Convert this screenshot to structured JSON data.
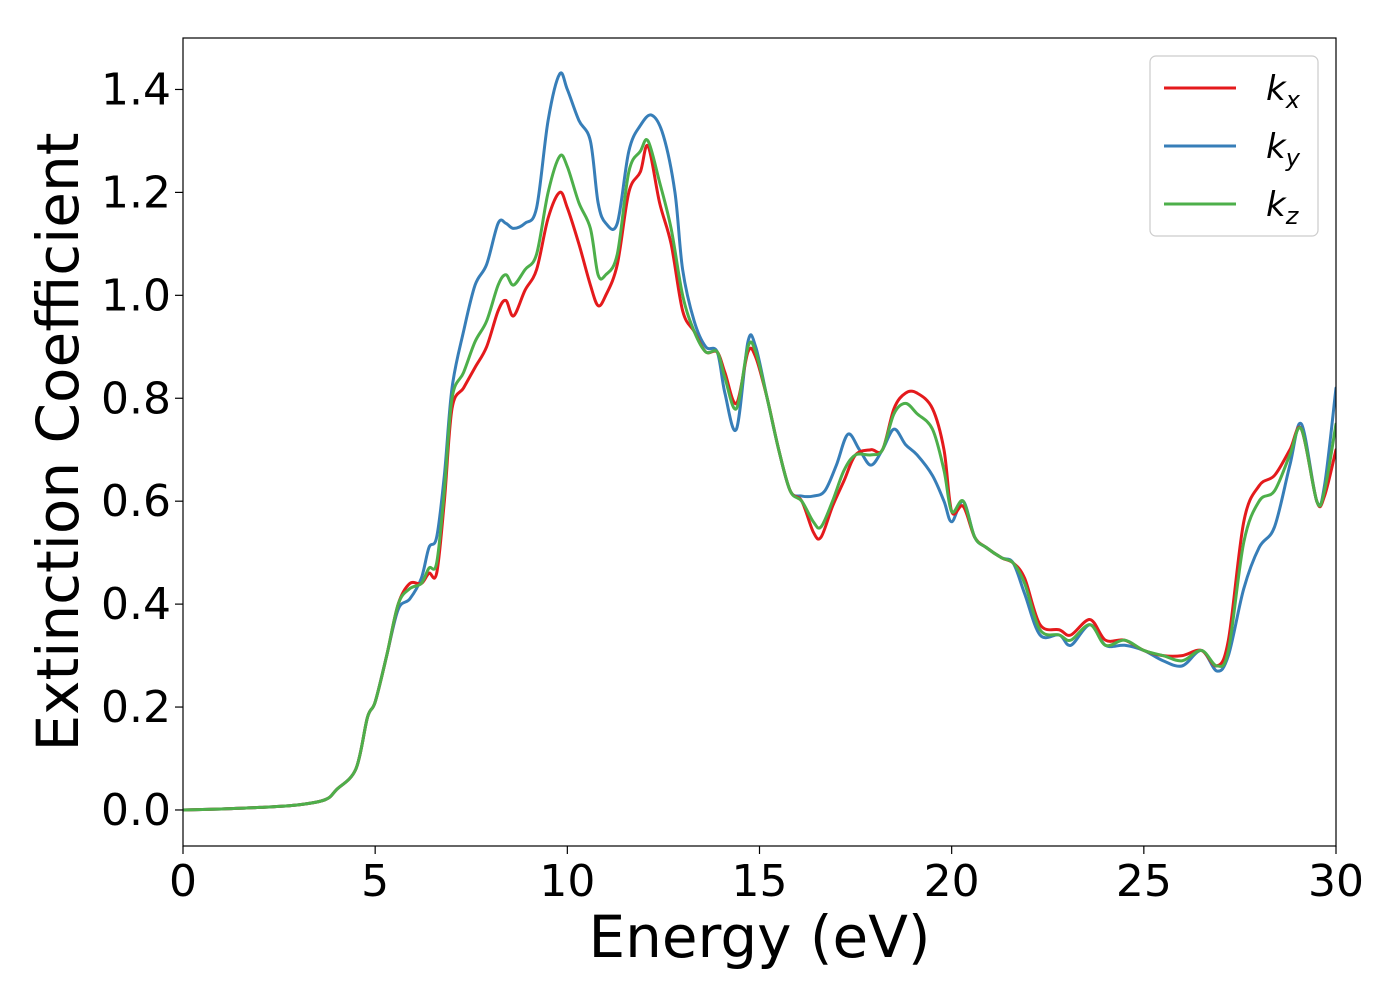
{
  "chart_data": {
    "type": "line",
    "title": "",
    "xlabel": "Energy (eV)",
    "ylabel": "Extinction Coefficient",
    "xlim": [
      0,
      30
    ],
    "ylim": [
      -0.07,
      1.5
    ],
    "xticks": [
      0,
      5,
      10,
      15,
      20,
      25,
      30
    ],
    "xtick_labels": [
      "0",
      "5",
      "10",
      "15",
      "20",
      "25",
      "30"
    ],
    "yticks": [
      0.0,
      0.2,
      0.4,
      0.6,
      0.8,
      1.0,
      1.2,
      1.4
    ],
    "ytick_labels": [
      "0.0",
      "0.2",
      "0.4",
      "0.6",
      "0.8",
      "1.0",
      "1.2",
      "1.4"
    ],
    "grid": false,
    "legend_position": "top-right",
    "series": [
      {
        "name": "k_x",
        "label_base": "k",
        "label_sub": "x",
        "color": "#e41a1c",
        "points": [
          [
            0,
            0.0
          ],
          [
            1,
            0.002
          ],
          [
            2,
            0.005
          ],
          [
            3,
            0.01
          ],
          [
            3.7,
            0.02
          ],
          [
            4.0,
            0.04
          ],
          [
            4.5,
            0.08
          ],
          [
            4.8,
            0.18
          ],
          [
            5.0,
            0.21
          ],
          [
            5.3,
            0.3
          ],
          [
            5.6,
            0.4
          ],
          [
            5.9,
            0.44
          ],
          [
            6.2,
            0.44
          ],
          [
            6.4,
            0.46
          ],
          [
            6.6,
            0.46
          ],
          [
            6.8,
            0.6
          ],
          [
            7.0,
            0.78
          ],
          [
            7.3,
            0.82
          ],
          [
            7.6,
            0.86
          ],
          [
            7.9,
            0.9
          ],
          [
            8.2,
            0.97
          ],
          [
            8.4,
            0.99
          ],
          [
            8.6,
            0.96
          ],
          [
            8.9,
            1.01
          ],
          [
            9.2,
            1.05
          ],
          [
            9.5,
            1.15
          ],
          [
            9.8,
            1.2
          ],
          [
            10.0,
            1.17
          ],
          [
            10.3,
            1.1
          ],
          [
            10.6,
            1.02
          ],
          [
            10.8,
            0.98
          ],
          [
            11.0,
            1.0
          ],
          [
            11.3,
            1.06
          ],
          [
            11.6,
            1.2
          ],
          [
            11.9,
            1.24
          ],
          [
            12.1,
            1.29
          ],
          [
            12.4,
            1.18
          ],
          [
            12.7,
            1.1
          ],
          [
            13.0,
            0.97
          ],
          [
            13.3,
            0.93
          ],
          [
            13.6,
            0.89
          ],
          [
            13.9,
            0.89
          ],
          [
            14.1,
            0.85
          ],
          [
            14.4,
            0.79
          ],
          [
            14.7,
            0.89
          ],
          [
            14.9,
            0.88
          ],
          [
            15.2,
            0.8
          ],
          [
            15.5,
            0.7
          ],
          [
            15.8,
            0.62
          ],
          [
            16.1,
            0.6
          ],
          [
            16.4,
            0.54
          ],
          [
            16.6,
            0.53
          ],
          [
            16.9,
            0.59
          ],
          [
            17.2,
            0.64
          ],
          [
            17.5,
            0.69
          ],
          [
            17.9,
            0.7
          ],
          [
            18.2,
            0.7
          ],
          [
            18.5,
            0.78
          ],
          [
            18.8,
            0.81
          ],
          [
            19.1,
            0.81
          ],
          [
            19.5,
            0.78
          ],
          [
            19.8,
            0.7
          ],
          [
            20.0,
            0.58
          ],
          [
            20.3,
            0.59
          ],
          [
            20.6,
            0.53
          ],
          [
            20.9,
            0.51
          ],
          [
            21.3,
            0.49
          ],
          [
            21.6,
            0.48
          ],
          [
            21.9,
            0.45
          ],
          [
            22.3,
            0.36
          ],
          [
            22.8,
            0.35
          ],
          [
            23.1,
            0.34
          ],
          [
            23.6,
            0.37
          ],
          [
            24.0,
            0.33
          ],
          [
            24.5,
            0.33
          ],
          [
            25.0,
            0.31
          ],
          [
            25.5,
            0.3
          ],
          [
            26.0,
            0.3
          ],
          [
            26.5,
            0.31
          ],
          [
            26.9,
            0.28
          ],
          [
            27.2,
            0.33
          ],
          [
            27.6,
            0.56
          ],
          [
            28.0,
            0.63
          ],
          [
            28.4,
            0.65
          ],
          [
            28.8,
            0.7
          ],
          [
            29.1,
            0.74
          ],
          [
            29.5,
            0.6
          ],
          [
            29.7,
            0.61
          ],
          [
            30.0,
            0.7
          ]
        ]
      },
      {
        "name": "k_y",
        "label_base": "k",
        "label_sub": "y",
        "color": "#377eb8",
        "points": [
          [
            0,
            0.0
          ],
          [
            1,
            0.002
          ],
          [
            2,
            0.005
          ],
          [
            3,
            0.01
          ],
          [
            3.7,
            0.02
          ],
          [
            4.0,
            0.04
          ],
          [
            4.5,
            0.08
          ],
          [
            4.8,
            0.18
          ],
          [
            5.0,
            0.21
          ],
          [
            5.3,
            0.3
          ],
          [
            5.6,
            0.39
          ],
          [
            5.9,
            0.41
          ],
          [
            6.2,
            0.45
          ],
          [
            6.4,
            0.51
          ],
          [
            6.6,
            0.53
          ],
          [
            6.8,
            0.65
          ],
          [
            7.0,
            0.82
          ],
          [
            7.3,
            0.93
          ],
          [
            7.6,
            1.02
          ],
          [
            7.9,
            1.06
          ],
          [
            8.2,
            1.14
          ],
          [
            8.4,
            1.14
          ],
          [
            8.6,
            1.13
          ],
          [
            8.9,
            1.14
          ],
          [
            9.2,
            1.17
          ],
          [
            9.5,
            1.34
          ],
          [
            9.8,
            1.43
          ],
          [
            10.0,
            1.4
          ],
          [
            10.3,
            1.34
          ],
          [
            10.6,
            1.3
          ],
          [
            10.8,
            1.18
          ],
          [
            11.0,
            1.14
          ],
          [
            11.3,
            1.14
          ],
          [
            11.6,
            1.28
          ],
          [
            11.9,
            1.33
          ],
          [
            12.2,
            1.35
          ],
          [
            12.5,
            1.31
          ],
          [
            12.8,
            1.2
          ],
          [
            13.0,
            1.05
          ],
          [
            13.3,
            0.95
          ],
          [
            13.6,
            0.9
          ],
          [
            13.9,
            0.89
          ],
          [
            14.1,
            0.81
          ],
          [
            14.4,
            0.74
          ],
          [
            14.7,
            0.91
          ],
          [
            14.9,
            0.9
          ],
          [
            15.2,
            0.8
          ],
          [
            15.5,
            0.7
          ],
          [
            15.8,
            0.62
          ],
          [
            16.1,
            0.61
          ],
          [
            16.4,
            0.61
          ],
          [
            16.7,
            0.62
          ],
          [
            17.0,
            0.67
          ],
          [
            17.3,
            0.73
          ],
          [
            17.6,
            0.7
          ],
          [
            17.9,
            0.67
          ],
          [
            18.2,
            0.7
          ],
          [
            18.5,
            0.74
          ],
          [
            18.8,
            0.71
          ],
          [
            19.1,
            0.69
          ],
          [
            19.5,
            0.65
          ],
          [
            19.8,
            0.6
          ],
          [
            20.0,
            0.56
          ],
          [
            20.3,
            0.6
          ],
          [
            20.6,
            0.53
          ],
          [
            20.9,
            0.51
          ],
          [
            21.3,
            0.49
          ],
          [
            21.6,
            0.48
          ],
          [
            21.9,
            0.42
          ],
          [
            22.3,
            0.34
          ],
          [
            22.8,
            0.34
          ],
          [
            23.1,
            0.32
          ],
          [
            23.6,
            0.36
          ],
          [
            24.0,
            0.32
          ],
          [
            24.5,
            0.32
          ],
          [
            25.0,
            0.31
          ],
          [
            25.5,
            0.29
          ],
          [
            26.0,
            0.28
          ],
          [
            26.5,
            0.31
          ],
          [
            26.9,
            0.27
          ],
          [
            27.2,
            0.3
          ],
          [
            27.6,
            0.43
          ],
          [
            28.0,
            0.51
          ],
          [
            28.4,
            0.55
          ],
          [
            28.8,
            0.67
          ],
          [
            29.1,
            0.75
          ],
          [
            29.5,
            0.6
          ],
          [
            29.7,
            0.63
          ],
          [
            30.0,
            0.82
          ]
        ]
      },
      {
        "name": "k_z",
        "label_base": "k",
        "label_sub": "z",
        "color": "#4daf4a",
        "points": [
          [
            0,
            0.0
          ],
          [
            1,
            0.002
          ],
          [
            2,
            0.005
          ],
          [
            3,
            0.01
          ],
          [
            3.7,
            0.02
          ],
          [
            4.0,
            0.04
          ],
          [
            4.5,
            0.08
          ],
          [
            4.8,
            0.18
          ],
          [
            5.0,
            0.21
          ],
          [
            5.3,
            0.3
          ],
          [
            5.6,
            0.4
          ],
          [
            5.9,
            0.43
          ],
          [
            6.2,
            0.44
          ],
          [
            6.4,
            0.47
          ],
          [
            6.6,
            0.48
          ],
          [
            6.8,
            0.62
          ],
          [
            7.0,
            0.8
          ],
          [
            7.3,
            0.85
          ],
          [
            7.6,
            0.91
          ],
          [
            7.9,
            0.95
          ],
          [
            8.2,
            1.02
          ],
          [
            8.4,
            1.04
          ],
          [
            8.6,
            1.02
          ],
          [
            8.9,
            1.05
          ],
          [
            9.2,
            1.08
          ],
          [
            9.5,
            1.2
          ],
          [
            9.8,
            1.27
          ],
          [
            10.0,
            1.25
          ],
          [
            10.3,
            1.18
          ],
          [
            10.6,
            1.13
          ],
          [
            10.8,
            1.04
          ],
          [
            11.0,
            1.04
          ],
          [
            11.3,
            1.08
          ],
          [
            11.6,
            1.24
          ],
          [
            11.9,
            1.28
          ],
          [
            12.1,
            1.3
          ],
          [
            12.4,
            1.22
          ],
          [
            12.7,
            1.13
          ],
          [
            13.0,
            1.0
          ],
          [
            13.3,
            0.93
          ],
          [
            13.6,
            0.89
          ],
          [
            13.9,
            0.89
          ],
          [
            14.1,
            0.84
          ],
          [
            14.4,
            0.78
          ],
          [
            14.7,
            0.9
          ],
          [
            14.9,
            0.89
          ],
          [
            15.2,
            0.8
          ],
          [
            15.5,
            0.7
          ],
          [
            15.8,
            0.62
          ],
          [
            16.1,
            0.6
          ],
          [
            16.4,
            0.56
          ],
          [
            16.6,
            0.55
          ],
          [
            16.9,
            0.6
          ],
          [
            17.2,
            0.66
          ],
          [
            17.5,
            0.69
          ],
          [
            17.9,
            0.69
          ],
          [
            18.2,
            0.7
          ],
          [
            18.5,
            0.77
          ],
          [
            18.8,
            0.79
          ],
          [
            19.1,
            0.77
          ],
          [
            19.5,
            0.74
          ],
          [
            19.8,
            0.66
          ],
          [
            20.0,
            0.58
          ],
          [
            20.3,
            0.6
          ],
          [
            20.6,
            0.53
          ],
          [
            20.9,
            0.51
          ],
          [
            21.3,
            0.49
          ],
          [
            21.6,
            0.48
          ],
          [
            21.9,
            0.44
          ],
          [
            22.3,
            0.35
          ],
          [
            22.8,
            0.34
          ],
          [
            23.1,
            0.33
          ],
          [
            23.6,
            0.36
          ],
          [
            24.0,
            0.32
          ],
          [
            24.5,
            0.33
          ],
          [
            25.0,
            0.31
          ],
          [
            25.5,
            0.3
          ],
          [
            26.0,
            0.29
          ],
          [
            26.5,
            0.31
          ],
          [
            26.9,
            0.28
          ],
          [
            27.2,
            0.31
          ],
          [
            27.6,
            0.52
          ],
          [
            28.0,
            0.6
          ],
          [
            28.4,
            0.62
          ],
          [
            28.8,
            0.69
          ],
          [
            29.1,
            0.74
          ],
          [
            29.5,
            0.6
          ],
          [
            29.7,
            0.62
          ],
          [
            30.0,
            0.75
          ]
        ]
      }
    ]
  }
}
